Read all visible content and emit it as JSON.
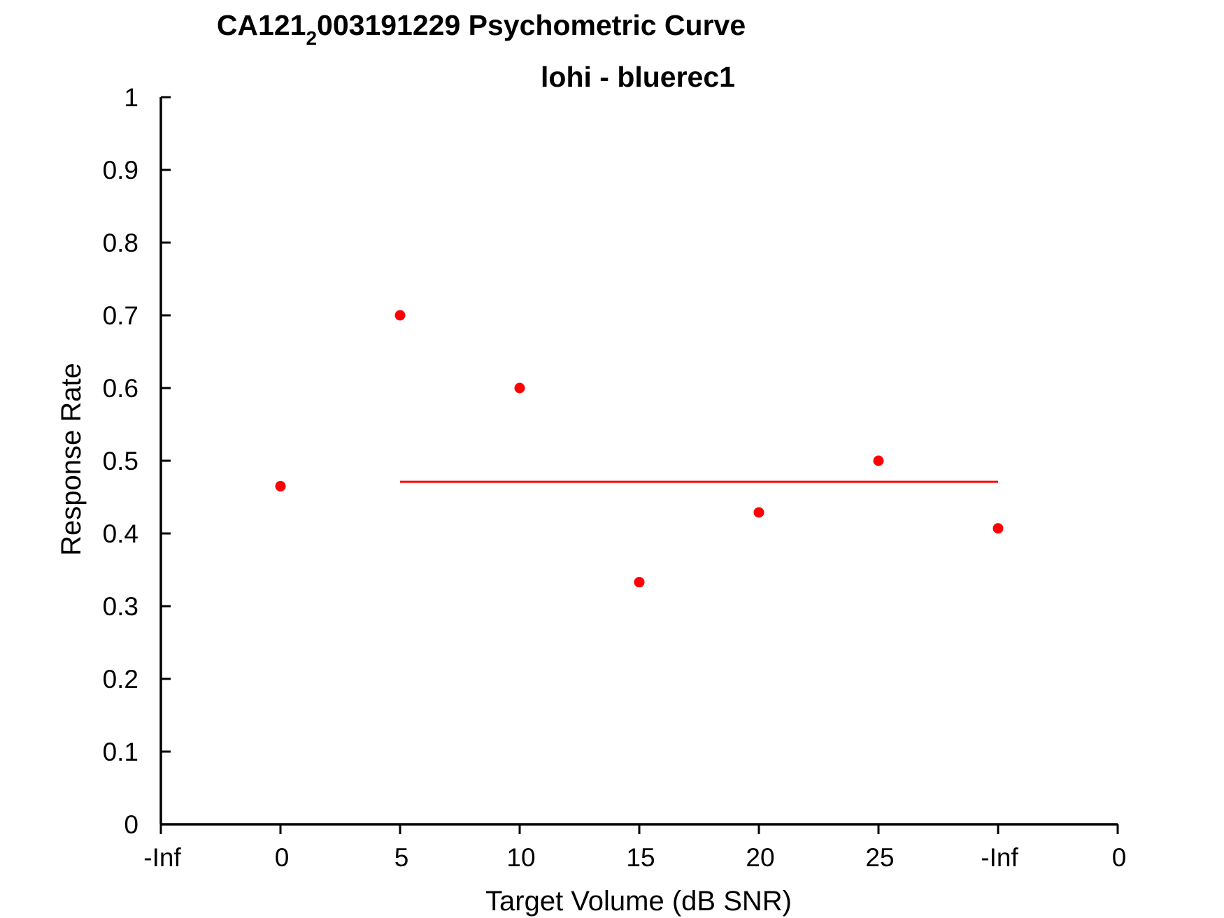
{
  "chart_data": {
    "type": "scatter",
    "title_main": "CA121",
    "title_subscript": "2",
    "title_rest": "003191229 Psychometric Curve",
    "subtitle": "lohi - bluerec1",
    "xlabel": "Target Volume (dB SNR)",
    "ylabel": "Response Rate",
    "x_tick_labels": [
      "-Inf",
      "0",
      "5",
      "10",
      "15",
      "20",
      "25",
      "-Inf",
      "0"
    ],
    "y_tick_labels": [
      "0",
      "0.1",
      "0.2",
      "0.3",
      "0.4",
      "0.5",
      "0.6",
      "0.7",
      "0.8",
      "0.9",
      "1"
    ],
    "ylim": [
      0,
      1
    ],
    "grid": false,
    "legend": "none",
    "series": [
      {
        "color": "#ff0000",
        "points": [
          {
            "x": "0",
            "y": 0.465
          },
          {
            "x": "5",
            "y": 0.7
          },
          {
            "x": "10",
            "y": 0.6
          },
          {
            "x": "15",
            "y": 0.333
          },
          {
            "x": "20",
            "y": 0.429
          },
          {
            "x": "25",
            "y": 0.5
          },
          {
            "x": "-Inf",
            "y": 0.407
          }
        ]
      }
    ],
    "fit_line": {
      "color": "#ff0000",
      "y": 0.471,
      "x_from": "5",
      "x_to": "-Inf"
    }
  }
}
